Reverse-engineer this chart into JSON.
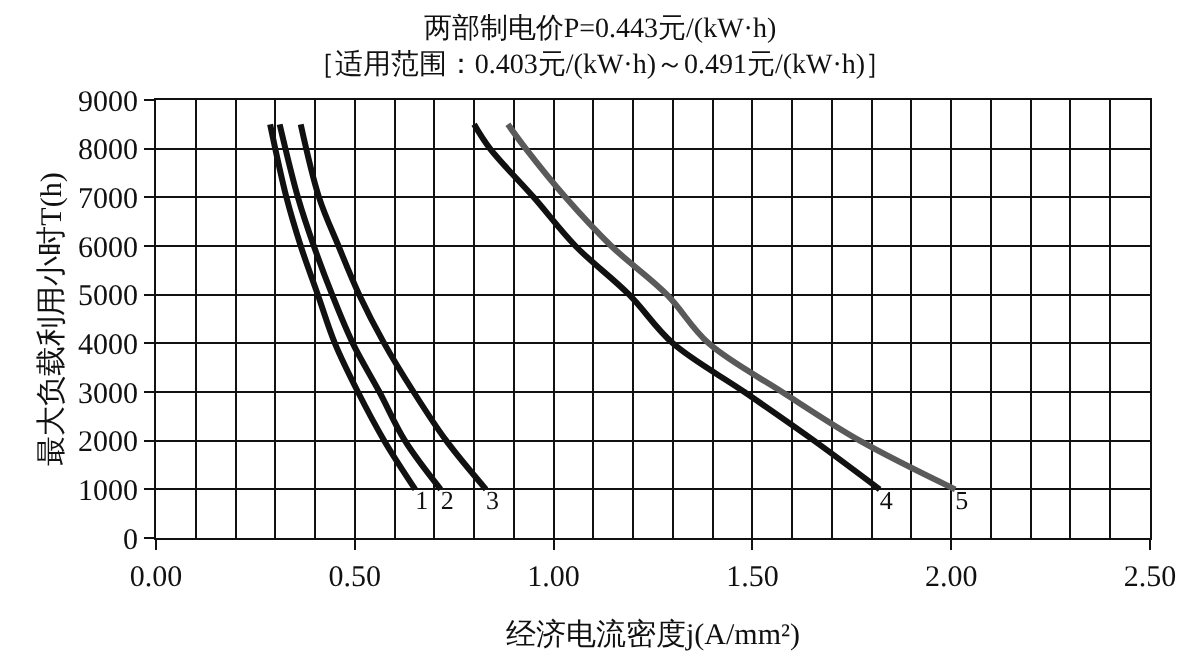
{
  "chart_data": {
    "type": "line",
    "title": "两部制电价P=0.443元/(kW·h)",
    "subtitle": "［适用范围：0.403元/(kW·h)～0.491元/(kW·h)］",
    "xlabel": "经济电流密度j(A/mm²)",
    "ylabel": "最大负载利用小时T(h)",
    "xlim": [
      0,
      2.5
    ],
    "xticks": [
      {
        "value": 0,
        "label": "0.00"
      },
      {
        "value": 0.5,
        "label": "0.50"
      },
      {
        "value": 1,
        "label": "1.00"
      },
      {
        "value": 1.5,
        "label": "1.50"
      },
      {
        "value": 2,
        "label": "2.00"
      },
      {
        "value": 2.5,
        "label": "2.50"
      }
    ],
    "ylim": [
      0,
      9000
    ],
    "yticks": [
      0,
      1000,
      2000,
      3000,
      4000,
      5000,
      6000,
      7000,
      8000,
      9000
    ],
    "grid": true,
    "legend": false,
    "marker": "none",
    "line_style": "solid",
    "series": [
      {
        "name": "1",
        "color": "#111111",
        "x": [
          0.287,
          0.328,
          0.364,
          0.407,
          0.45,
          0.508,
          0.574,
          0.652
        ],
        "values": [
          8500,
          7000,
          6000,
          5000,
          4000,
          3000,
          2000,
          1000
        ]
      },
      {
        "name": "2",
        "color": "#111111",
        "x": [
          0.311,
          0.357,
          0.397,
          0.443,
          0.495,
          0.562,
          0.626,
          0.716
        ],
        "values": [
          8500,
          7000,
          6000,
          5000,
          4000,
          3000,
          2000,
          1000
        ]
      },
      {
        "name": "3",
        "color": "#111111",
        "x": [
          0.364,
          0.41,
          0.459,
          0.511,
          0.574,
          0.648,
          0.73,
          0.83
        ],
        "values": [
          8500,
          7000,
          6000,
          5000,
          4000,
          3000,
          2000,
          1000
        ]
      },
      {
        "name": "4",
        "color": "#111111",
        "x": [
          0.8,
          0.84,
          0.95,
          1.055,
          1.19,
          1.3,
          1.48,
          1.655,
          1.82
        ],
        "values": [
          8500,
          8000,
          7000,
          6000,
          5000,
          4000,
          3000,
          2000,
          1000
        ]
      },
      {
        "name": "5",
        "color": "#5a5a5a",
        "x": [
          0.885,
          0.93,
          1.03,
          1.145,
          1.285,
          1.39,
          1.575,
          1.77,
          2.01
        ],
        "values": [
          8500,
          8000,
          7000,
          6000,
          5000,
          4000,
          3000,
          2000,
          1000
        ]
      }
    ]
  }
}
